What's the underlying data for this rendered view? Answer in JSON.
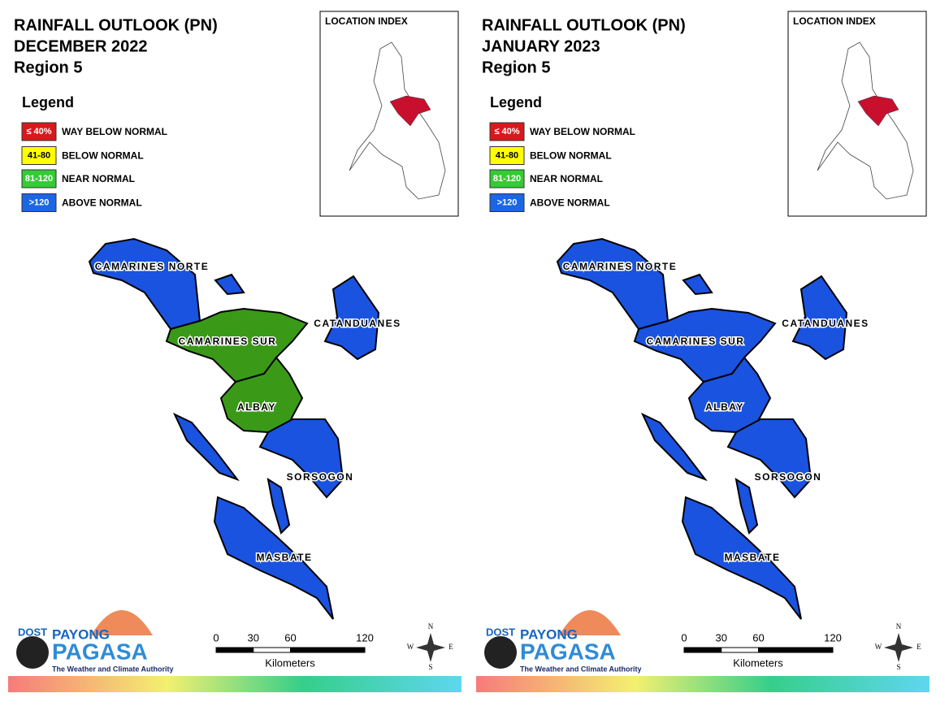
{
  "panels": [
    {
      "title": [
        "RAINFALL OUTLOOK (PN)",
        "DECEMBER 2022",
        "Region 5"
      ],
      "legend": {
        "title": "Legend",
        "items": [
          {
            "swatch": "≤ 40%",
            "label": "WAY BELOW NORMAL",
            "color": "#d7191c"
          },
          {
            "swatch": "41-80",
            "label": "BELOW NORMAL",
            "color": "#ffff00"
          },
          {
            "swatch": "81-120",
            "label": "NEAR NORMAL",
            "color": "#33cc33"
          },
          {
            "swatch": ">120",
            "label": "ABOVE NORMAL",
            "color": "#1a66e6"
          }
        ]
      },
      "location_index": "LOCATION INDEX",
      "provinces": [
        {
          "name": "CAMARINES NORTE",
          "color": "#1a53e0"
        },
        {
          "name": "CAMARINES SUR",
          "color": "#3a9a18"
        },
        {
          "name": "CATANDUANES",
          "color": "#1a53e0"
        },
        {
          "name": "ALBAY",
          "color": "#3a9a18"
        },
        {
          "name": "SORSOGON",
          "color": "#1a53e0"
        },
        {
          "name": "MASBATE",
          "color": "#1a53e0"
        }
      ],
      "scale": {
        "ticks": [
          0,
          30,
          60,
          120
        ],
        "unit": "Kilometers"
      },
      "logo": {
        "dost": "DOST",
        "payong": "PAYONG",
        "pagasa": "PAGASA",
        "tagline": "The Weather and Climate Authority"
      },
      "compass": [
        "N",
        "E",
        "S",
        "W"
      ]
    },
    {
      "title": [
        "RAINFALL OUTLOOK (PN)",
        "JANUARY 2023",
        "Region 5"
      ],
      "legend": {
        "title": "Legend",
        "items": [
          {
            "swatch": "≤ 40%",
            "label": "WAY BELOW NORMAL",
            "color": "#d7191c"
          },
          {
            "swatch": "41-80",
            "label": "BELOW NORMAL",
            "color": "#ffff00"
          },
          {
            "swatch": "81-120",
            "label": "NEAR NORMAL",
            "color": "#33cc33"
          },
          {
            "swatch": ">120",
            "label": "ABOVE NORMAL",
            "color": "#1a66e6"
          }
        ]
      },
      "location_index": "LOCATION INDEX",
      "provinces": [
        {
          "name": "CAMARINES NORTE",
          "color": "#1a53e0"
        },
        {
          "name": "CAMARINES SUR",
          "color": "#1a53e0"
        },
        {
          "name": "CATANDUANES",
          "color": "#1a53e0"
        },
        {
          "name": "ALBAY",
          "color": "#1a53e0"
        },
        {
          "name": "SORSOGON",
          "color": "#1a53e0"
        },
        {
          "name": "MASBATE",
          "color": "#1a53e0"
        }
      ],
      "scale": {
        "ticks": [
          0,
          30,
          60,
          120
        ],
        "unit": "Kilometers"
      },
      "logo": {
        "dost": "DOST",
        "payong": "PAYONG",
        "pagasa": "PAGASA",
        "tagline": "The Weather and Climate Authority"
      },
      "compass": [
        "N",
        "E",
        "S",
        "W"
      ]
    }
  ]
}
